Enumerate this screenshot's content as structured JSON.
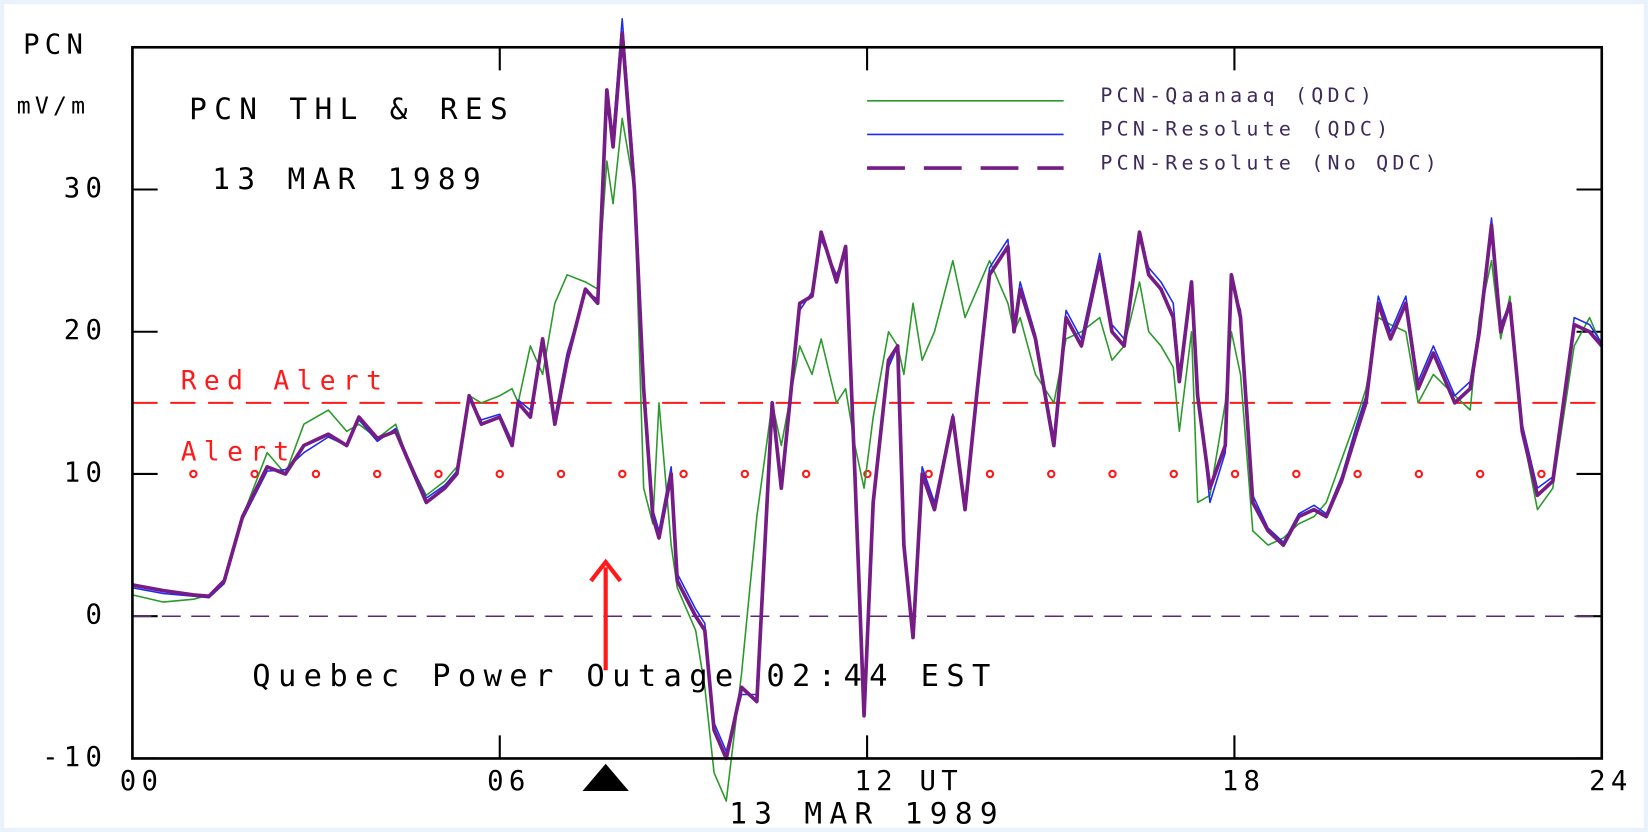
{
  "chart_data": {
    "type": "line",
    "title": "PCN THL & RES",
    "subtitle": "13 MAR 1989",
    "y_label": "PCN",
    "y_unit": "mV/m",
    "x_label": "13 MAR 1989",
    "xlim": [
      0,
      24
    ],
    "xticks": [
      {
        "value": 0,
        "label": "00"
      },
      {
        "value": 6,
        "label": "06"
      },
      {
        "value": 12,
        "label": "12 UT"
      },
      {
        "value": 18,
        "label": "18"
      },
      {
        "value": 24,
        "label": "24"
      }
    ],
    "ylim": [
      -10,
      40
    ],
    "yticks": [
      -10,
      0,
      10,
      20,
      30
    ],
    "grid": false,
    "legend": "upper right",
    "x": [
      0,
      0.5,
      1,
      1.25,
      1.5,
      1.8,
      2.2,
      2.5,
      2.8,
      3.2,
      3.5,
      3.7,
      4,
      4.3,
      4.5,
      4.8,
      5.1,
      5.3,
      5.5,
      5.7,
      6,
      6.2,
      6.3,
      6.5,
      6.7,
      6.9,
      7.1,
      7.4,
      7.6,
      7.75,
      7.85,
      8,
      8.2,
      8.35,
      8.5,
      8.6,
      8.8,
      8.9,
      9.2,
      9.35,
      9.5,
      9.7,
      9.95,
      10.2,
      10.45,
      10.6,
      10.9,
      11.1,
      11.25,
      11.5,
      11.65,
      11.8,
      11.95,
      12.1,
      12.35,
      12.5,
      12.6,
      12.75,
      12.9,
      13.1,
      13.4,
      13.6,
      13.8,
      14,
      14.3,
      14.4,
      14.5,
      14.75,
      15.05,
      15.25,
      15.5,
      15.8,
      16,
      16.2,
      16.45,
      16.6,
      16.8,
      17,
      17.1,
      17.3,
      17.4,
      17.6,
      17.85,
      17.95,
      18.1,
      18.3,
      18.55,
      18.8,
      19.05,
      19.3,
      19.5,
      19.75,
      20,
      20.15,
      20.35,
      20.55,
      20.8,
      21,
      21.25,
      21.6,
      21.85,
      22,
      22.2,
      22.35,
      22.5,
      22.7,
      22.95,
      23.2,
      23.55,
      23.8,
      24
    ],
    "series": [
      {
        "name": "PCN-Qaanaaq (QDC)",
        "color": "#2a9a2a",
        "width": 1.5,
        "dash": "solid",
        "values": [
          1.5,
          1.0,
          1.2,
          1.5,
          2.5,
          7,
          11.5,
          10,
          13.5,
          14.5,
          13,
          13.5,
          12.5,
          13.5,
          11,
          8.5,
          9.5,
          10.5,
          15.5,
          15,
          15.5,
          16,
          15,
          19,
          17,
          22,
          24,
          23.5,
          23,
          32,
          29,
          35,
          30,
          9,
          6.5,
          15,
          5,
          2,
          -1,
          -5,
          -11,
          -13,
          -4,
          7,
          15,
          12,
          19,
          17,
          19.5,
          15,
          16,
          12,
          9,
          14,
          20,
          19,
          17,
          22,
          18,
          20,
          25,
          21,
          23,
          25,
          22,
          20,
          21,
          17,
          15,
          19.5,
          20,
          21,
          18,
          19,
          23.5,
          20,
          19,
          17.5,
          13,
          20,
          8,
          8.5,
          15,
          20,
          17,
          6,
          5,
          5.5,
          6.5,
          7,
          8,
          11,
          14,
          16,
          21,
          20.5,
          20,
          15,
          17,
          15.5,
          14.5,
          21,
          25,
          19.5,
          22.5,
          13,
          7.5,
          9,
          19,
          21,
          19
        ]
      },
      {
        "name": "PCN-Resolute (QDC)",
        "color": "#1c2cf5",
        "width": 1.5,
        "dash": "solid",
        "values": [
          2.0,
          1.6,
          1.4,
          1.3,
          2.3,
          6.8,
          10.2,
          10.3,
          11.5,
          12.6,
          12,
          13.8,
          12.3,
          13.2,
          11.2,
          8.3,
          9.2,
          10.2,
          15.2,
          13.8,
          14.2,
          12.3,
          15.2,
          14.5,
          19.2,
          14,
          18.5,
          22.8,
          22.3,
          36.5,
          34,
          42,
          31,
          16.5,
          7.5,
          6,
          10.5,
          3,
          0.5,
          -0.5,
          -7.5,
          -9.5,
          -5.5,
          -5.5,
          14.5,
          9.5,
          21.5,
          22.8,
          26.5,
          24,
          25.5,
          11,
          -6.5,
          8.5,
          17.5,
          19,
          5.5,
          -1,
          10.5,
          8,
          14.2,
          8,
          16.5,
          24.5,
          26.5,
          20.5,
          23.5,
          19.8,
          12.5,
          21.5,
          19.5,
          25.5,
          20.5,
          19.5,
          26.5,
          24.5,
          23.5,
          22,
          17,
          23.5,
          16,
          8,
          11.5,
          23.5,
          21.5,
          8.5,
          6.2,
          5.2,
          7.2,
          7.8,
          7.2,
          9.8,
          13.5,
          15.5,
          22.5,
          20,
          22.5,
          16.5,
          19,
          15.5,
          16.5,
          20.5,
          28,
          20.5,
          22,
          13.5,
          9,
          9.8,
          21,
          20.5,
          19.2
        ]
      },
      {
        "name": "PCN-Resolute (No QDC)",
        "color": "#761c86",
        "width": 3.5,
        "dash": "dashed",
        "values": [
          2.2,
          1.8,
          1.5,
          1.4,
          2.5,
          7,
          10.5,
          10,
          12,
          12.8,
          12,
          14,
          12.5,
          13,
          11,
          8,
          9,
          10,
          15.5,
          13.5,
          14,
          12,
          15,
          14,
          19.5,
          13.5,
          18,
          23,
          22,
          37,
          33,
          41,
          30,
          16,
          7,
          5.5,
          10,
          2.5,
          0,
          -1,
          -8,
          -10,
          -5,
          -6,
          15,
          9,
          22,
          22.5,
          27,
          23.5,
          26,
          10,
          -7,
          8,
          18,
          19,
          5,
          -1.5,
          10,
          7.5,
          14,
          7.5,
          16,
          24,
          26,
          20,
          23,
          19.5,
          12,
          21,
          19,
          25,
          20,
          19,
          27,
          24,
          23,
          21,
          16.5,
          23.5,
          15.5,
          9,
          12,
          24,
          21,
          8,
          6,
          5,
          7,
          7.5,
          7,
          9.5,
          13,
          15,
          22,
          19.5,
          22,
          16,
          18.5,
          15,
          16,
          20,
          27.5,
          20,
          22,
          13,
          8.5,
          9.5,
          20.5,
          20,
          19
        ]
      }
    ],
    "reference_lines": [
      {
        "value": 15,
        "label": "Red Alert",
        "color": "#ff1a1a",
        "style": "dashed"
      },
      {
        "value": 10,
        "label": "Alert",
        "color": "#ff1a1a",
        "style": "dotted"
      },
      {
        "value": 0,
        "color": "#5a2a7a",
        "style": "dashed"
      }
    ],
    "annotation": {
      "text": "Quebec Power Outage 02:44 EST",
      "x": 7.73,
      "color": "#ff1a1a"
    }
  }
}
